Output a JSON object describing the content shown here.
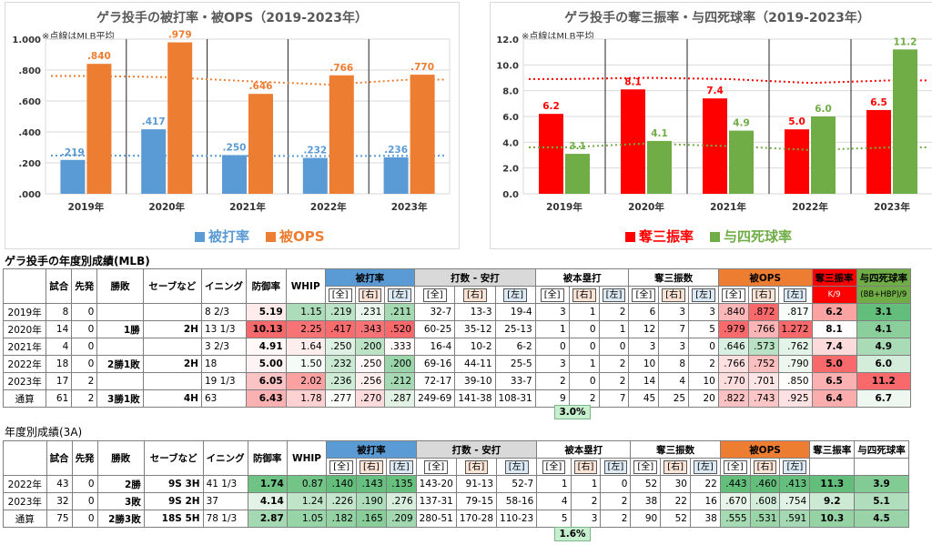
{
  "chart_data": [
    {
      "type": "bar",
      "title": "ゲラ投手の被打率・被OPS（2019-2023年）",
      "note": "※点線はMLB平均",
      "categories": [
        "2019年",
        "2020年",
        "2021年",
        "2022年",
        "2023年"
      ],
      "ylim": [
        0,
        1.0
      ],
      "yticks": [
        ".000",
        ".200",
        ".400",
        ".600",
        ".800",
        "1.000"
      ],
      "series": [
        {
          "name": "被打率",
          "color": "#5b9bd5",
          "values": [
            0.219,
            0.417,
            0.25,
            0.232,
            0.236
          ],
          "labels": [
            ".219",
            ".417",
            ".250",
            ".232",
            ".236"
          ],
          "avg": [
            0.247,
            0.246,
            0.245,
            0.244,
            0.246
          ]
        },
        {
          "name": "被OPS",
          "color": "#ed7d31",
          "values": [
            0.84,
            0.979,
            0.646,
            0.766,
            0.77
          ],
          "labels": [
            ".840",
            ".979",
            ".646",
            ".766",
            ".770"
          ],
          "avg": [
            0.762,
            0.754,
            0.728,
            0.706,
            0.738
          ]
        }
      ]
    },
    {
      "type": "bar",
      "title": "ゲラ投手の奪三振率・与四死球率（2019-2023年）",
      "note": "※点線はMLB平均",
      "categories": [
        "2019年",
        "2020年",
        "2021年",
        "2022年",
        "2023年"
      ],
      "ylim": [
        0,
        12
      ],
      "yticks": [
        "0.0",
        "2.0",
        "4.0",
        "6.0",
        "8.0",
        "10.0",
        "12.0"
      ],
      "series": [
        {
          "name": "奪三振率",
          "color": "#ff0000",
          "values": [
            6.2,
            8.1,
            7.4,
            5.0,
            6.5
          ],
          "labels": [
            "6.2",
            "8.1",
            "7.4",
            "5.0",
            "6.5"
          ],
          "avg": [
            8.9,
            9.0,
            8.9,
            8.6,
            8.8
          ]
        },
        {
          "name": "与四死球率",
          "color": "#70ad47",
          "values": [
            3.1,
            4.1,
            4.9,
            6.0,
            11.2
          ],
          "labels": [
            "3.1",
            "4.1",
            "4.9",
            "6.0",
            "11.2"
          ],
          "avg": [
            3.6,
            3.9,
            3.7,
            3.4,
            3.6
          ]
        }
      ]
    }
  ],
  "mlb": {
    "title": "ゲラ投手の年度別成績(MLB)",
    "headers": [
      "試合",
      "先発",
      "勝敗",
      "セーブなど",
      "イニング",
      "防御率",
      "WHIP",
      "被打率",
      "打数 - 安打",
      "被本塁打",
      "奪三振数",
      "被OPS",
      "奪三振率",
      "与四死球率"
    ],
    "sub": [
      "[全]",
      "[右]",
      "[左]",
      "K/9",
      "(BB+HBP)/9"
    ],
    "rows": [
      [
        "2019年",
        "8",
        "0",
        "",
        "",
        "8 2/3",
        "5.19",
        "1.15",
        ".219",
        ".231",
        ".211",
        "32-7",
        "13-3",
        "19-4",
        "3",
        "1",
        "2",
        "6",
        "3",
        "3",
        ".840",
        ".872",
        ".817",
        "6.2",
        "3.1"
      ],
      [
        "2020年",
        "14",
        "0",
        "1勝",
        "2H",
        "13 1/3",
        "10.13",
        "2.25",
        ".417",
        ".343",
        ".520",
        "60-25",
        "35-12",
        "25-13",
        "1",
        "0",
        "1",
        "12",
        "7",
        "5",
        ".979",
        ".766",
        "1.272",
        "8.1",
        "4.1"
      ],
      [
        "2021年",
        "4",
        "0",
        "",
        "",
        "3 2/3",
        "4.91",
        "1.64",
        ".250",
        ".200",
        ".333",
        "16-4",
        "10-2",
        "6-2",
        "0",
        "0",
        "0",
        "3",
        "3",
        "0",
        ".646",
        ".573",
        ".762",
        "7.4",
        "4.9"
      ],
      [
        "2022年",
        "18",
        "0",
        "2勝1敗",
        "2H",
        "18",
        "5.00",
        "1.50",
        ".232",
        ".250",
        ".200",
        "69-16",
        "44-11",
        "25-5",
        "3",
        "1",
        "2",
        "10",
        "8",
        "2",
        ".766",
        ".752",
        ".790",
        "5.0",
        "6.0"
      ],
      [
        "2023年",
        "17",
        "2",
        "",
        "",
        "19 1/3",
        "6.05",
        "2.02",
        ".236",
        ".256",
        ".212",
        "72-17",
        "39-10",
        "33-7",
        "2",
        "0",
        "2",
        "14",
        "4",
        "10",
        ".770",
        ".701",
        ".850",
        "6.5",
        "11.2"
      ],
      [
        "通算",
        "61",
        "2",
        "3勝1敗",
        "4H",
        "63",
        "6.43",
        "1.78",
        ".277",
        ".270",
        ".287",
        "249-69",
        "141-38",
        "108-31",
        "9",
        "2",
        "7",
        "45",
        "25",
        "20",
        ".822",
        ".743",
        ".925",
        "6.4",
        "6.7"
      ]
    ],
    "hr_pct": "3.0%"
  },
  "aaa": {
    "title": "年度別成績(3A)",
    "rows": [
      [
        "2022年",
        "43",
        "0",
        "2勝",
        "9S 3H",
        "41 1/3",
        "1.74",
        "0.87",
        ".140",
        ".143",
        ".135",
        "143-20",
        "91-13",
        "52-7",
        "1",
        "1",
        "0",
        "52",
        "30",
        "22",
        ".443",
        ".460",
        ".413",
        "11.3",
        "3.9"
      ],
      [
        "2023年",
        "32",
        "0",
        "3敗",
        "9S 2H",
        "37",
        "4.14",
        "1.24",
        ".226",
        ".190",
        ".276",
        "137-31",
        "79-15",
        "58-16",
        "4",
        "2",
        "2",
        "38",
        "22",
        "16",
        ".670",
        ".608",
        ".754",
        "9.2",
        "5.1"
      ],
      [
        "通算",
        "75",
        "0",
        "2勝3敗",
        "18S 5H",
        "78 1/3",
        "2.87",
        "1.05",
        ".182",
        ".165",
        ".209",
        "280-51",
        "170-28",
        "110-23",
        "5",
        "3",
        "2",
        "90",
        "52",
        "38",
        ".555",
        ".531",
        ".591",
        "10.3",
        "4.5"
      ]
    ],
    "hr_pct": "1.6%"
  }
}
